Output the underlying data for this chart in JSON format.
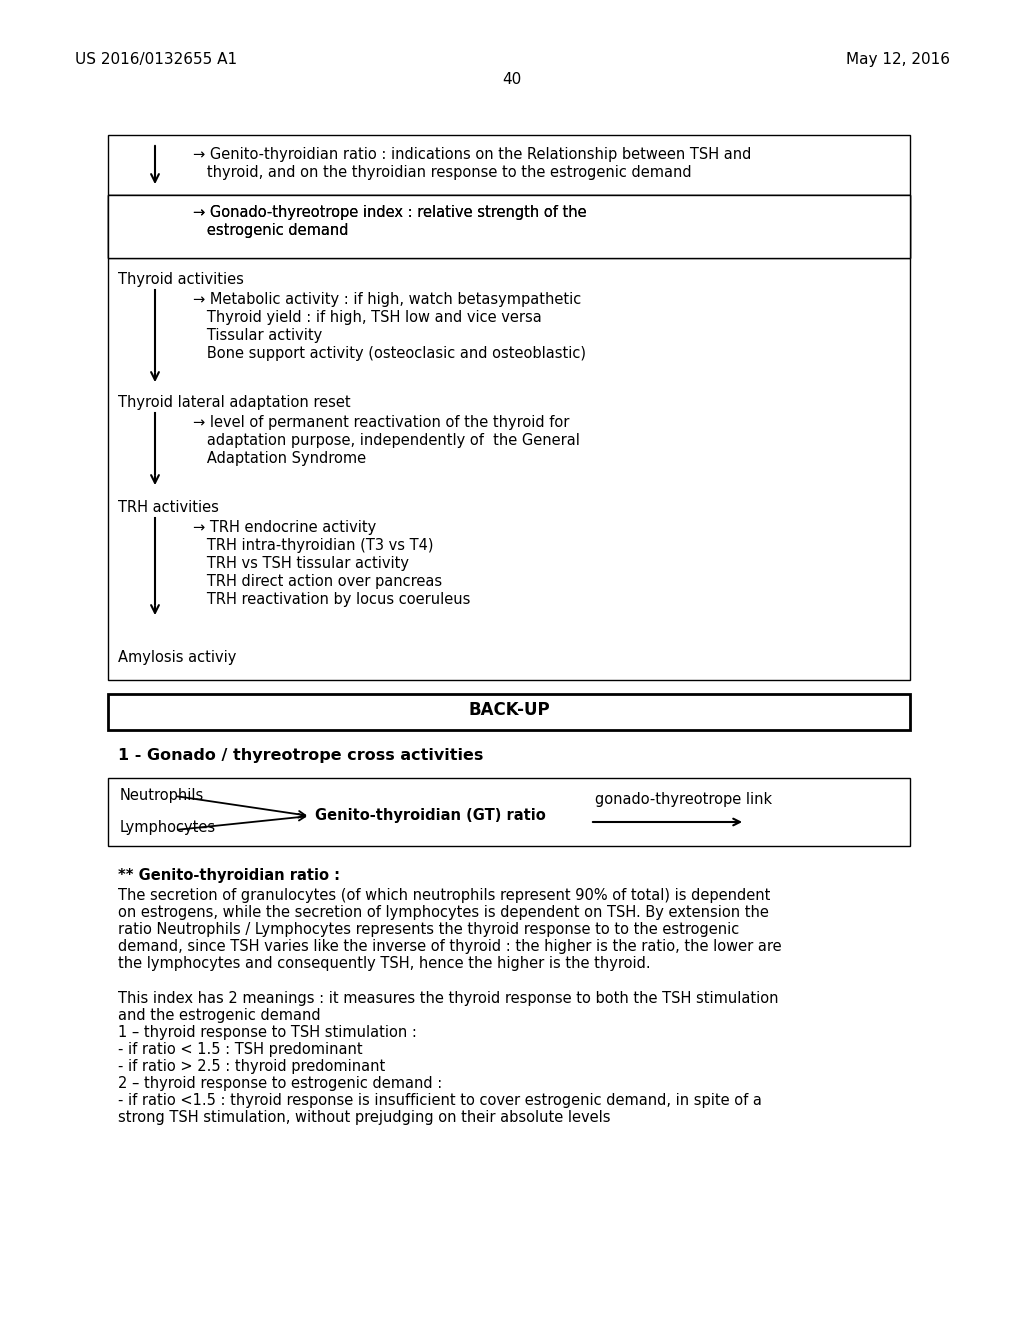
{
  "bg_color": "#ffffff",
  "header_left": "US 2016/0132655 A1",
  "header_right": "May 12, 2016",
  "page_number": "40",
  "box1_line1": "→ Genito-thyroidian ratio : indications on the Relationship between TSH and",
  "box1_line2": "   thyroid, and on the thyroidian response to the estrogenic demand",
  "box2_line1": "→ Gonado-thyreotrope index : relative strength of the",
  "box2_line2": "   estrogenic demand",
  "thyroid_label": "Thyroid activities",
  "thyroid_sub": [
    "→ Metabolic activity : if high, watch betasympathetic",
    "   Thyroid yield : if high, TSH low and vice versa",
    "   Tissular activity",
    "   Bone support activity (osteoclasic and osteoblastic)"
  ],
  "thyroid_lateral_label": "Thyroid lateral adaptation reset",
  "thyroid_lateral_sub": [
    "→ level of permanent reactivation of the thyroid for",
    "   adaptation purpose, independently of  the General",
    "   Adaptation Syndrome"
  ],
  "trh_label": "TRH activities",
  "trh_sub": [
    "→ TRH endocrine activity",
    "   TRH intra-thyroidian (T3 vs T4)",
    "   TRH vs TSH tissular activity",
    "   TRH direct action over pancreas",
    "   TRH reactivation by locus coeruleus"
  ],
  "amylosis": "Amylosis activiy",
  "backup_label": "BACK-UP",
  "section1_label": "1 - Gonado / thyreotrope cross activities",
  "neutrophils": "Neutrophils",
  "lymphocytes": "Lymphocytes",
  "gt_ratio_bold": "Genito-thyroidian (GT) ratio",
  "gonado_link": "gonado-thyreotrope link",
  "gt_ratio_header": "** Genito-thyroidian ratio :",
  "gt_ratio_body": [
    "The secretion of granulocytes (of which neutrophils represent 90% of total) is dependent",
    "on estrogens, while the secretion of lymphocytes is dependent on TSH. By extension the",
    "ratio Neutrophils / Lymphocytes represents the thyroid response to to the estrogenic",
    "demand, since TSH varies like the inverse of thyroid : the higher is the ratio, the lower are",
    "the lymphocytes and consequently TSH, hence the higher is the thyroid."
  ],
  "meaning_body": [
    "This index has 2 meanings : it measures the thyroid response to both the TSH stimulation",
    "and the estrogenic demand",
    "1 – thyroid response to TSH stimulation :",
    "- if ratio < 1.5 : TSH predominant",
    "- if ratio > 2.5 : thyroid predominant",
    "2 – thyroid response to estrogenic demand :",
    "- if ratio <1.5 : thyroid response is insufficient to cover estrogenic demand, in spite of a",
    "strong TSH stimulation, without prejudging on their absolute levels"
  ]
}
